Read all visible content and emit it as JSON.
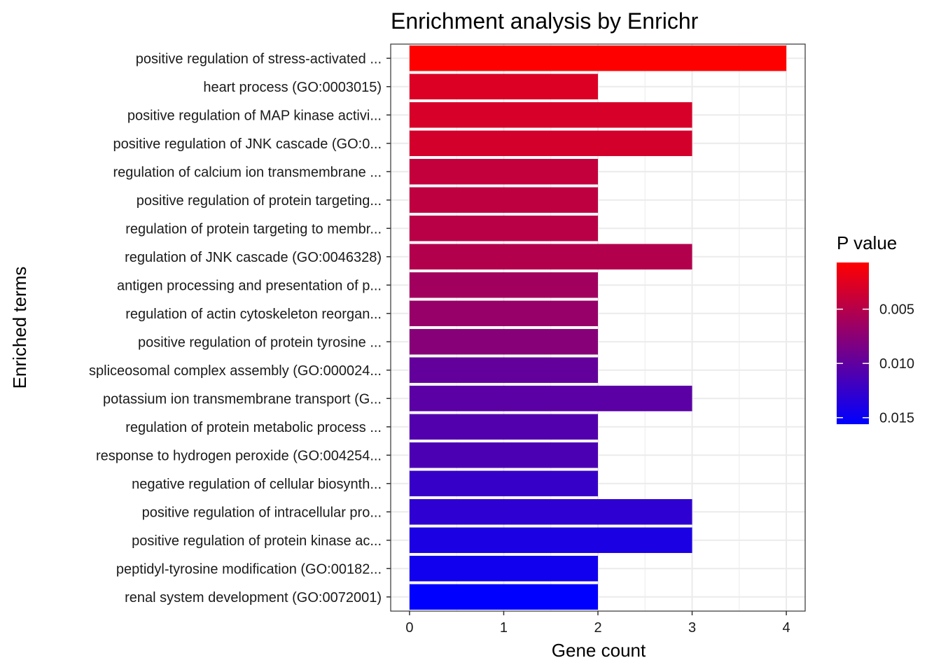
{
  "chart_data": {
    "type": "bar",
    "orientation": "horizontal",
    "title": "Enrichment analysis by Enrichr",
    "xlabel": "Gene count",
    "ylabel": "Enriched terms",
    "xlim": [
      0,
      4.2
    ],
    "xticks": [
      0,
      1,
      2,
      3,
      4
    ],
    "grid": true,
    "categories": [
      "positive regulation of stress-activated ...",
      "heart process (GO:0003015)",
      "positive regulation of MAP kinase activi...",
      "positive regulation of JNK cascade (GO:0...",
      "regulation of calcium ion transmembrane ...",
      "positive regulation of protein targeting...",
      "regulation of protein targeting to membr...",
      "regulation of JNK cascade (GO:0046328)",
      "antigen processing and presentation of p...",
      "regulation of actin cytoskeleton reorgan...",
      "positive regulation of protein tyrosine ...",
      "spliceosomal complex assembly (GO:000024...",
      "potassium ion transmembrane transport (G...",
      "regulation of protein metabolic process ...",
      "response to hydrogen peroxide (GO:004254...",
      "negative regulation of cellular biosynth...",
      "positive regulation of intracellular pro...",
      "positive regulation of protein kinase ac...",
      "peptidyl-tyrosine modification (GO:00182...",
      "renal system development (GO:0072001)"
    ],
    "values": [
      4,
      2,
      3,
      3,
      2,
      2,
      2,
      3,
      2,
      2,
      2,
      2,
      3,
      2,
      2,
      2,
      3,
      3,
      2,
      2
    ],
    "p_values": [
      0.0007,
      0.0028,
      0.0031,
      0.0033,
      0.0042,
      0.0045,
      0.0048,
      0.0052,
      0.0062,
      0.0068,
      0.0077,
      0.0098,
      0.0103,
      0.0108,
      0.0112,
      0.0124,
      0.0129,
      0.014,
      0.0146,
      0.0156
    ],
    "legend": {
      "title": "P value",
      "position": "right",
      "ticks": [
        "0.005",
        "0.010",
        "0.015"
      ],
      "tick_values": [
        0.005,
        0.01,
        0.015
      ],
      "range": [
        0.0007,
        0.0156
      ],
      "low_color": "#ff0000",
      "high_color": "#0000ff"
    }
  }
}
